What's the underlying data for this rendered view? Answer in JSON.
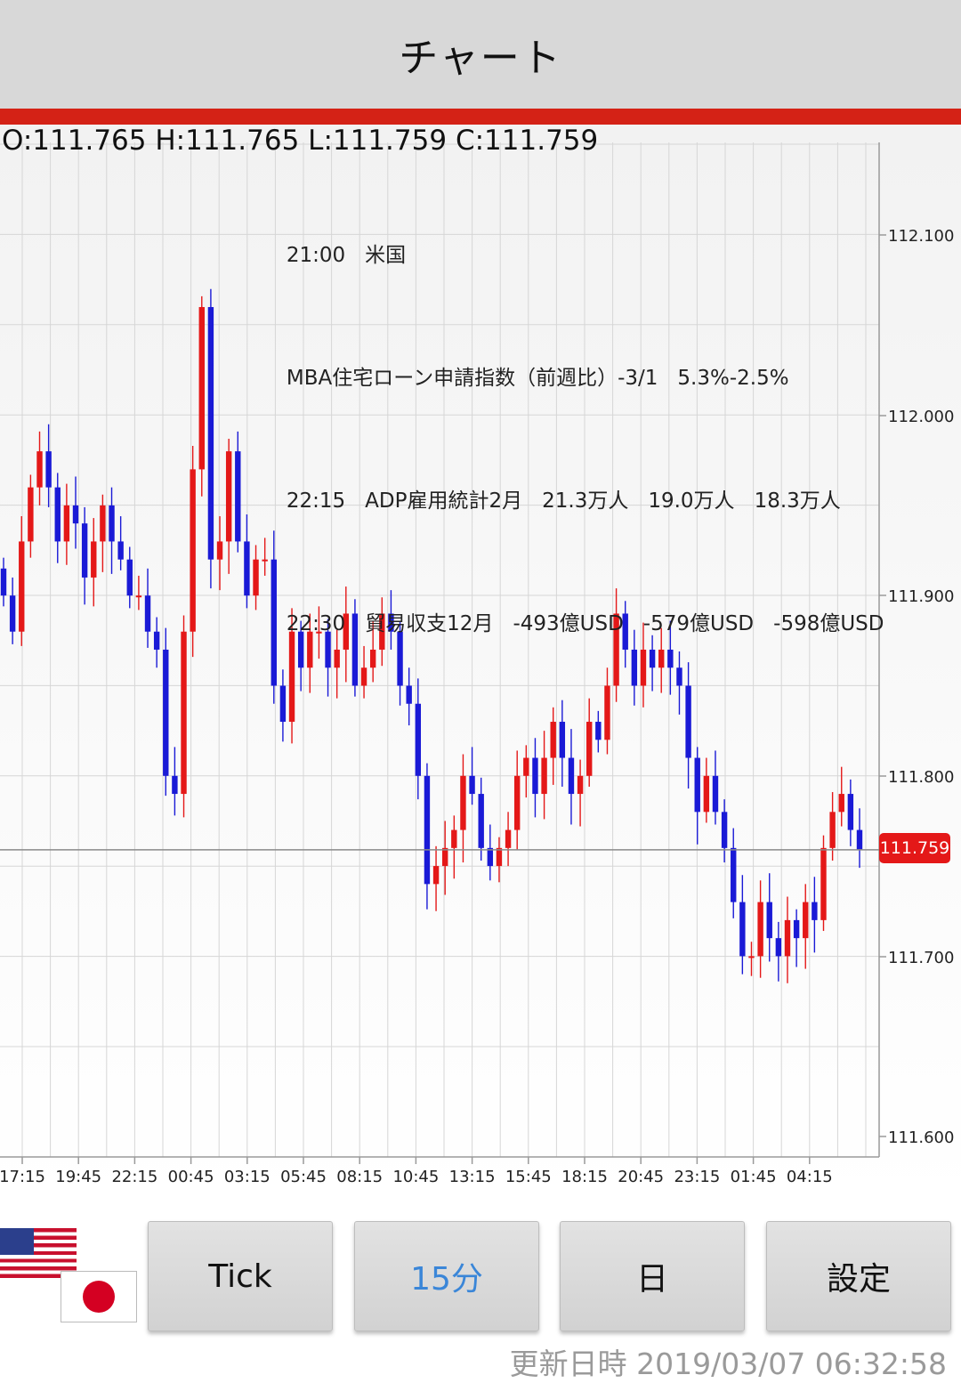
{
  "header": {
    "title": "チャート"
  },
  "ohlc": {
    "open": "O:111.765",
    "high": "H:111.765",
    "low": "L:111.759",
    "close": "C:111.759"
  },
  "events": [
    [
      "21:00",
      "米国"
    ],
    [
      "MBA住宅ローン申請指数（前週比）-3/1",
      "5.3%-2.5%"
    ],
    [
      "22:15",
      "ADP雇用統計2月",
      "21.3万人",
      "19.0万人",
      "18.3万人"
    ],
    [
      "22:30",
      "貿易収支12月",
      "-493億USD",
      "-579億USD",
      "-598億USD"
    ]
  ],
  "current_price": "111.759",
  "colors": {
    "up": "#e41818",
    "down": "#1a1ad6",
    "accent": "#d42216",
    "active_tab": "#3a86d8"
  },
  "chart_data": {
    "type": "candlestick",
    "y_ticks": [
      "112.100",
      "112.000",
      "111.900",
      "111.800",
      "111.700",
      "111.600"
    ],
    "x_ticks": [
      "17:15",
      "19:45",
      "22:15",
      "00:45",
      "03:15",
      "05:45",
      "08:15",
      "10:45",
      "13:15",
      "15:45",
      "18:15",
      "20:45",
      "23:15",
      "01:45",
      "04:15"
    ],
    "ylim": [
      111.59,
      112.15
    ],
    "grid": true,
    "interval": "15分",
    "close_series": [
      111.9,
      111.88,
      111.93,
      111.96,
      111.98,
      111.96,
      111.93,
      111.95,
      111.94,
      111.91,
      111.93,
      111.95,
      111.93,
      111.92,
      111.9,
      111.9,
      111.88,
      111.87,
      111.8,
      111.79,
      111.88,
      111.97,
      112.06,
      111.92,
      111.93,
      111.98,
      111.93,
      111.9,
      111.92,
      111.92,
      111.85,
      111.83,
      111.88,
      111.86,
      111.88,
      111.88,
      111.86,
      111.87,
      111.89,
      111.85,
      111.86,
      111.87,
      111.89,
      111.88,
      111.85,
      111.84,
      111.8,
      111.74,
      111.75,
      111.76,
      111.77,
      111.8,
      111.79,
      111.76,
      111.75,
      111.76,
      111.77,
      111.8,
      111.81,
      111.79,
      111.81,
      111.83,
      111.81,
      111.79,
      111.8,
      111.83,
      111.82,
      111.85,
      111.89,
      111.87,
      111.85,
      111.87,
      111.86,
      111.87,
      111.86,
      111.85,
      111.81,
      111.78,
      111.8,
      111.78,
      111.76,
      111.73,
      111.7,
      111.7,
      111.73,
      111.71,
      111.7,
      111.72,
      111.71,
      111.73,
      111.72,
      111.76,
      111.78,
      111.79,
      111.77,
      111.759
    ]
  },
  "buttons": {
    "tick": "Tick",
    "m15": "15分",
    "day": "日",
    "settings": "設定"
  },
  "updated": "更新日時 2019/03/07 06:32:58"
}
